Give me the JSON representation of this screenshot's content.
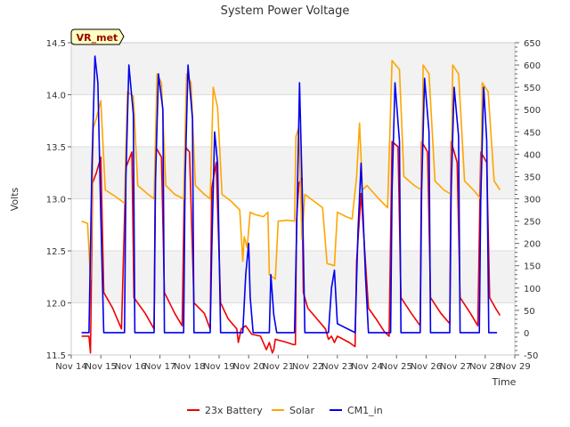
{
  "chart_data": {
    "type": "line",
    "title": "System Power Voltage",
    "xlabel": "Time",
    "ylabel": "Volts",
    "badge": "VR_met",
    "x_ticks": [
      "Nov 14",
      "Nov 15",
      "Nov 16",
      "Nov 17",
      "Nov 18",
      "Nov 19",
      "Nov 20",
      "Nov 21",
      "Nov 22",
      "Nov 23",
      "Nov 24",
      "Nov 25",
      "Nov 26",
      "Nov 27",
      "Nov 28",
      "Nov 29"
    ],
    "x_range_days": [
      14,
      29
    ],
    "y_left": {
      "min": 11.5,
      "max": 14.5,
      "ticks": [
        "11.5",
        "12.0",
        "12.5",
        "13.0",
        "13.5",
        "14.0",
        "14.5"
      ]
    },
    "y_right": {
      "min": -50,
      "max": 650,
      "ticks": [
        "-50",
        "0",
        "50",
        "100",
        "150",
        "200",
        "250",
        "300",
        "350",
        "400",
        "450",
        "500",
        "550",
        "600",
        "650"
      ]
    },
    "grid": "horizontal bands",
    "legend_position": "bottom",
    "series": [
      {
        "name": "23x Battery",
        "color": "#ee0000",
        "axis": "left",
        "points": [
          [
            14.35,
            11.68
          ],
          [
            14.6,
            11.68
          ],
          [
            14.65,
            11.52
          ],
          [
            14.72,
            13.15
          ],
          [
            14.85,
            13.25
          ],
          [
            15.0,
            13.4
          ],
          [
            15.1,
            12.1
          ],
          [
            15.4,
            11.95
          ],
          [
            15.7,
            11.75
          ],
          [
            15.85,
            13.3
          ],
          [
            16.05,
            13.45
          ],
          [
            16.12,
            12.05
          ],
          [
            16.5,
            11.9
          ],
          [
            16.8,
            11.75
          ],
          [
            16.85,
            13.5
          ],
          [
            17.05,
            13.4
          ],
          [
            17.15,
            12.1
          ],
          [
            17.5,
            11.9
          ],
          [
            17.75,
            11.78
          ],
          [
            17.85,
            13.5
          ],
          [
            18.0,
            13.45
          ],
          [
            18.15,
            12.0
          ],
          [
            18.5,
            11.9
          ],
          [
            18.7,
            11.75
          ],
          [
            18.75,
            13.1
          ],
          [
            18.9,
            13.35
          ],
          [
            19.05,
            12.0
          ],
          [
            19.3,
            11.85
          ],
          [
            19.6,
            11.75
          ],
          [
            19.65,
            11.62
          ],
          [
            19.75,
            11.75
          ],
          [
            19.9,
            11.78
          ],
          [
            20.1,
            11.7
          ],
          [
            20.4,
            11.68
          ],
          [
            20.6,
            11.55
          ],
          [
            20.7,
            11.62
          ],
          [
            20.8,
            11.52
          ],
          [
            20.85,
            11.55
          ],
          [
            20.9,
            11.65
          ],
          [
            21.3,
            11.62
          ],
          [
            21.5,
            11.6
          ],
          [
            21.58,
            11.6
          ],
          [
            21.62,
            12.8
          ],
          [
            21.7,
            13.15
          ],
          [
            21.8,
            13.2
          ],
          [
            21.85,
            12.1
          ],
          [
            22.0,
            11.95
          ],
          [
            22.3,
            11.85
          ],
          [
            22.6,
            11.75
          ],
          [
            22.7,
            11.65
          ],
          [
            22.8,
            11.68
          ],
          [
            22.9,
            11.62
          ],
          [
            23.0,
            11.68
          ],
          [
            23.4,
            11.62
          ],
          [
            23.6,
            11.58
          ],
          [
            23.65,
            12.4
          ],
          [
            23.8,
            13.05
          ],
          [
            23.95,
            12.4
          ],
          [
            24.05,
            11.95
          ],
          [
            24.3,
            11.85
          ],
          [
            24.6,
            11.72
          ],
          [
            24.75,
            11.68
          ],
          [
            24.85,
            13.55
          ],
          [
            25.05,
            13.5
          ],
          [
            25.15,
            12.05
          ],
          [
            25.5,
            11.9
          ],
          [
            25.8,
            11.78
          ],
          [
            25.85,
            13.55
          ],
          [
            26.05,
            13.45
          ],
          [
            26.15,
            12.05
          ],
          [
            26.5,
            11.9
          ],
          [
            26.8,
            11.8
          ],
          [
            26.85,
            13.55
          ],
          [
            27.05,
            13.35
          ],
          [
            27.15,
            12.05
          ],
          [
            27.5,
            11.9
          ],
          [
            27.75,
            11.78
          ],
          [
            27.85,
            13.45
          ],
          [
            28.05,
            13.35
          ],
          [
            28.15,
            12.05
          ],
          [
            28.35,
            11.95
          ],
          [
            28.5,
            11.88
          ]
        ]
      },
      {
        "name": "Solar",
        "color": "#ffa500",
        "axis": "right",
        "points": [
          [
            14.35,
            250
          ],
          [
            14.55,
            245
          ],
          [
            14.65,
            120
          ],
          [
            14.75,
            460
          ],
          [
            14.85,
            480
          ],
          [
            15.0,
            520
          ],
          [
            15.15,
            320
          ],
          [
            15.5,
            305
          ],
          [
            15.8,
            290
          ],
          [
            15.9,
            540
          ],
          [
            16.1,
            530
          ],
          [
            16.25,
            330
          ],
          [
            16.6,
            310
          ],
          [
            16.8,
            300
          ],
          [
            16.9,
            580
          ],
          [
            17.05,
            560
          ],
          [
            17.2,
            330
          ],
          [
            17.5,
            310
          ],
          [
            17.8,
            300
          ],
          [
            17.9,
            580
          ],
          [
            18.05,
            560
          ],
          [
            18.2,
            330
          ],
          [
            18.5,
            310
          ],
          [
            18.7,
            300
          ],
          [
            18.8,
            550
          ],
          [
            18.95,
            505
          ],
          [
            19.1,
            310
          ],
          [
            19.4,
            295
          ],
          [
            19.7,
            275
          ],
          [
            19.8,
            160
          ],
          [
            19.85,
            215
          ],
          [
            19.95,
            190
          ],
          [
            20.05,
            270
          ],
          [
            20.2,
            265
          ],
          [
            20.5,
            260
          ],
          [
            20.65,
            270
          ],
          [
            20.7,
            130
          ],
          [
            20.9,
            120
          ],
          [
            21.0,
            250
          ],
          [
            21.3,
            252
          ],
          [
            21.55,
            250
          ],
          [
            21.6,
            440
          ],
          [
            21.7,
            460
          ],
          [
            21.8,
            210
          ],
          [
            21.9,
            310
          ],
          [
            22.1,
            300
          ],
          [
            22.3,
            290
          ],
          [
            22.5,
            280
          ],
          [
            22.65,
            155
          ],
          [
            22.9,
            150
          ],
          [
            23.0,
            270
          ],
          [
            23.3,
            260
          ],
          [
            23.5,
            255
          ],
          [
            23.65,
            350
          ],
          [
            23.75,
            470
          ],
          [
            23.85,
            320
          ],
          [
            24.0,
            330
          ],
          [
            24.4,
            300
          ],
          [
            24.7,
            280
          ],
          [
            24.85,
            610
          ],
          [
            25.1,
            590
          ],
          [
            25.25,
            350
          ],
          [
            25.6,
            330
          ],
          [
            25.85,
            320
          ],
          [
            25.9,
            600
          ],
          [
            26.1,
            580
          ],
          [
            26.3,
            340
          ],
          [
            26.6,
            320
          ],
          [
            26.85,
            310
          ],
          [
            26.9,
            600
          ],
          [
            27.1,
            580
          ],
          [
            27.3,
            340
          ],
          [
            27.6,
            320
          ],
          [
            27.85,
            300
          ],
          [
            27.9,
            560
          ],
          [
            28.1,
            540
          ],
          [
            28.3,
            340
          ],
          [
            28.5,
            320
          ]
        ]
      },
      {
        "name": "CM1_in",
        "color": "#0000ee",
        "axis": "right",
        "points": [
          [
            14.35,
            0
          ],
          [
            14.6,
            0
          ],
          [
            14.7,
            370
          ],
          [
            14.8,
            620
          ],
          [
            14.9,
            560
          ],
          [
            15.0,
            260
          ],
          [
            15.1,
            0
          ],
          [
            15.8,
            0
          ],
          [
            15.85,
            350
          ],
          [
            15.95,
            600
          ],
          [
            16.1,
            490
          ],
          [
            16.15,
            0
          ],
          [
            16.8,
            0
          ],
          [
            16.85,
            340
          ],
          [
            16.95,
            580
          ],
          [
            17.1,
            500
          ],
          [
            17.15,
            0
          ],
          [
            17.8,
            0
          ],
          [
            17.85,
            340
          ],
          [
            17.95,
            600
          ],
          [
            18.1,
            480
          ],
          [
            18.15,
            0
          ],
          [
            18.7,
            0
          ],
          [
            18.75,
            180
          ],
          [
            18.85,
            450
          ],
          [
            18.95,
            380
          ],
          [
            19.05,
            0
          ],
          [
            19.8,
            0
          ],
          [
            19.9,
            130
          ],
          [
            20.0,
            200
          ],
          [
            20.05,
            80
          ],
          [
            20.15,
            0
          ],
          [
            20.7,
            0
          ],
          [
            20.75,
            130
          ],
          [
            20.85,
            40
          ],
          [
            20.95,
            0
          ],
          [
            21.55,
            0
          ],
          [
            21.65,
            320
          ],
          [
            21.72,
            560
          ],
          [
            21.82,
            300
          ],
          [
            21.9,
            0
          ],
          [
            22.7,
            0
          ],
          [
            22.8,
            100
          ],
          [
            22.9,
            140
          ],
          [
            23.0,
            20
          ],
          [
            23.6,
            0
          ],
          [
            23.7,
            230
          ],
          [
            23.8,
            380
          ],
          [
            23.95,
            130
          ],
          [
            24.05,
            0
          ],
          [
            24.8,
            0
          ],
          [
            24.85,
            320
          ],
          [
            24.95,
            560
          ],
          [
            25.1,
            430
          ],
          [
            25.15,
            0
          ],
          [
            25.8,
            0
          ],
          [
            25.85,
            320
          ],
          [
            25.95,
            570
          ],
          [
            26.1,
            450
          ],
          [
            26.15,
            0
          ],
          [
            26.8,
            0
          ],
          [
            26.85,
            320
          ],
          [
            26.95,
            550
          ],
          [
            27.1,
            440
          ],
          [
            27.15,
            0
          ],
          [
            27.8,
            0
          ],
          [
            27.85,
            300
          ],
          [
            27.95,
            550
          ],
          [
            28.05,
            430
          ],
          [
            28.12,
            0
          ],
          [
            28.4,
            0
          ]
        ]
      }
    ]
  }
}
